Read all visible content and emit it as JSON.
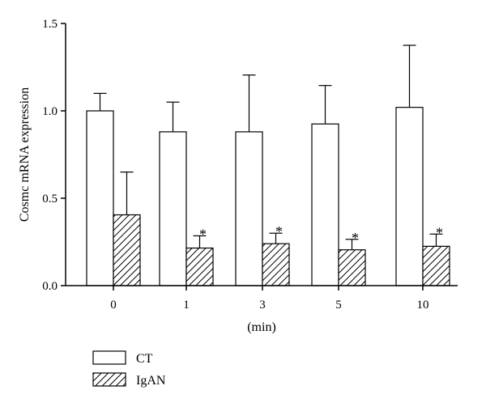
{
  "chart_data": {
    "type": "bar",
    "title": "",
    "xlabel": "(min)",
    "ylabel": "Cosmc mRNA expression",
    "categories": [
      "0",
      "1",
      "3",
      "5",
      "10"
    ],
    "ylim": [
      0.0,
      1.5
    ],
    "yticks": [
      "0.0",
      "0.5",
      "1.0",
      "1.5"
    ],
    "grid": false,
    "legend_position": "bottom-left",
    "series": [
      {
        "name": "CT",
        "fill": "#ffffff",
        "pattern": "none",
        "values": [
          1.0,
          0.88,
          0.88,
          0.925,
          1.02
        ],
        "error_upper": [
          0.1,
          0.17,
          0.325,
          0.22,
          0.355
        ],
        "significance": [
          "",
          "",
          "",
          "",
          ""
        ]
      },
      {
        "name": "IgAN",
        "fill": "#ffffff",
        "pattern": "diagonal-hatch",
        "values": [
          0.405,
          0.215,
          0.24,
          0.205,
          0.225
        ],
        "error_upper": [
          0.245,
          0.07,
          0.06,
          0.06,
          0.07
        ],
        "significance": [
          "",
          "*",
          "*",
          "*",
          "*"
        ]
      }
    ]
  }
}
